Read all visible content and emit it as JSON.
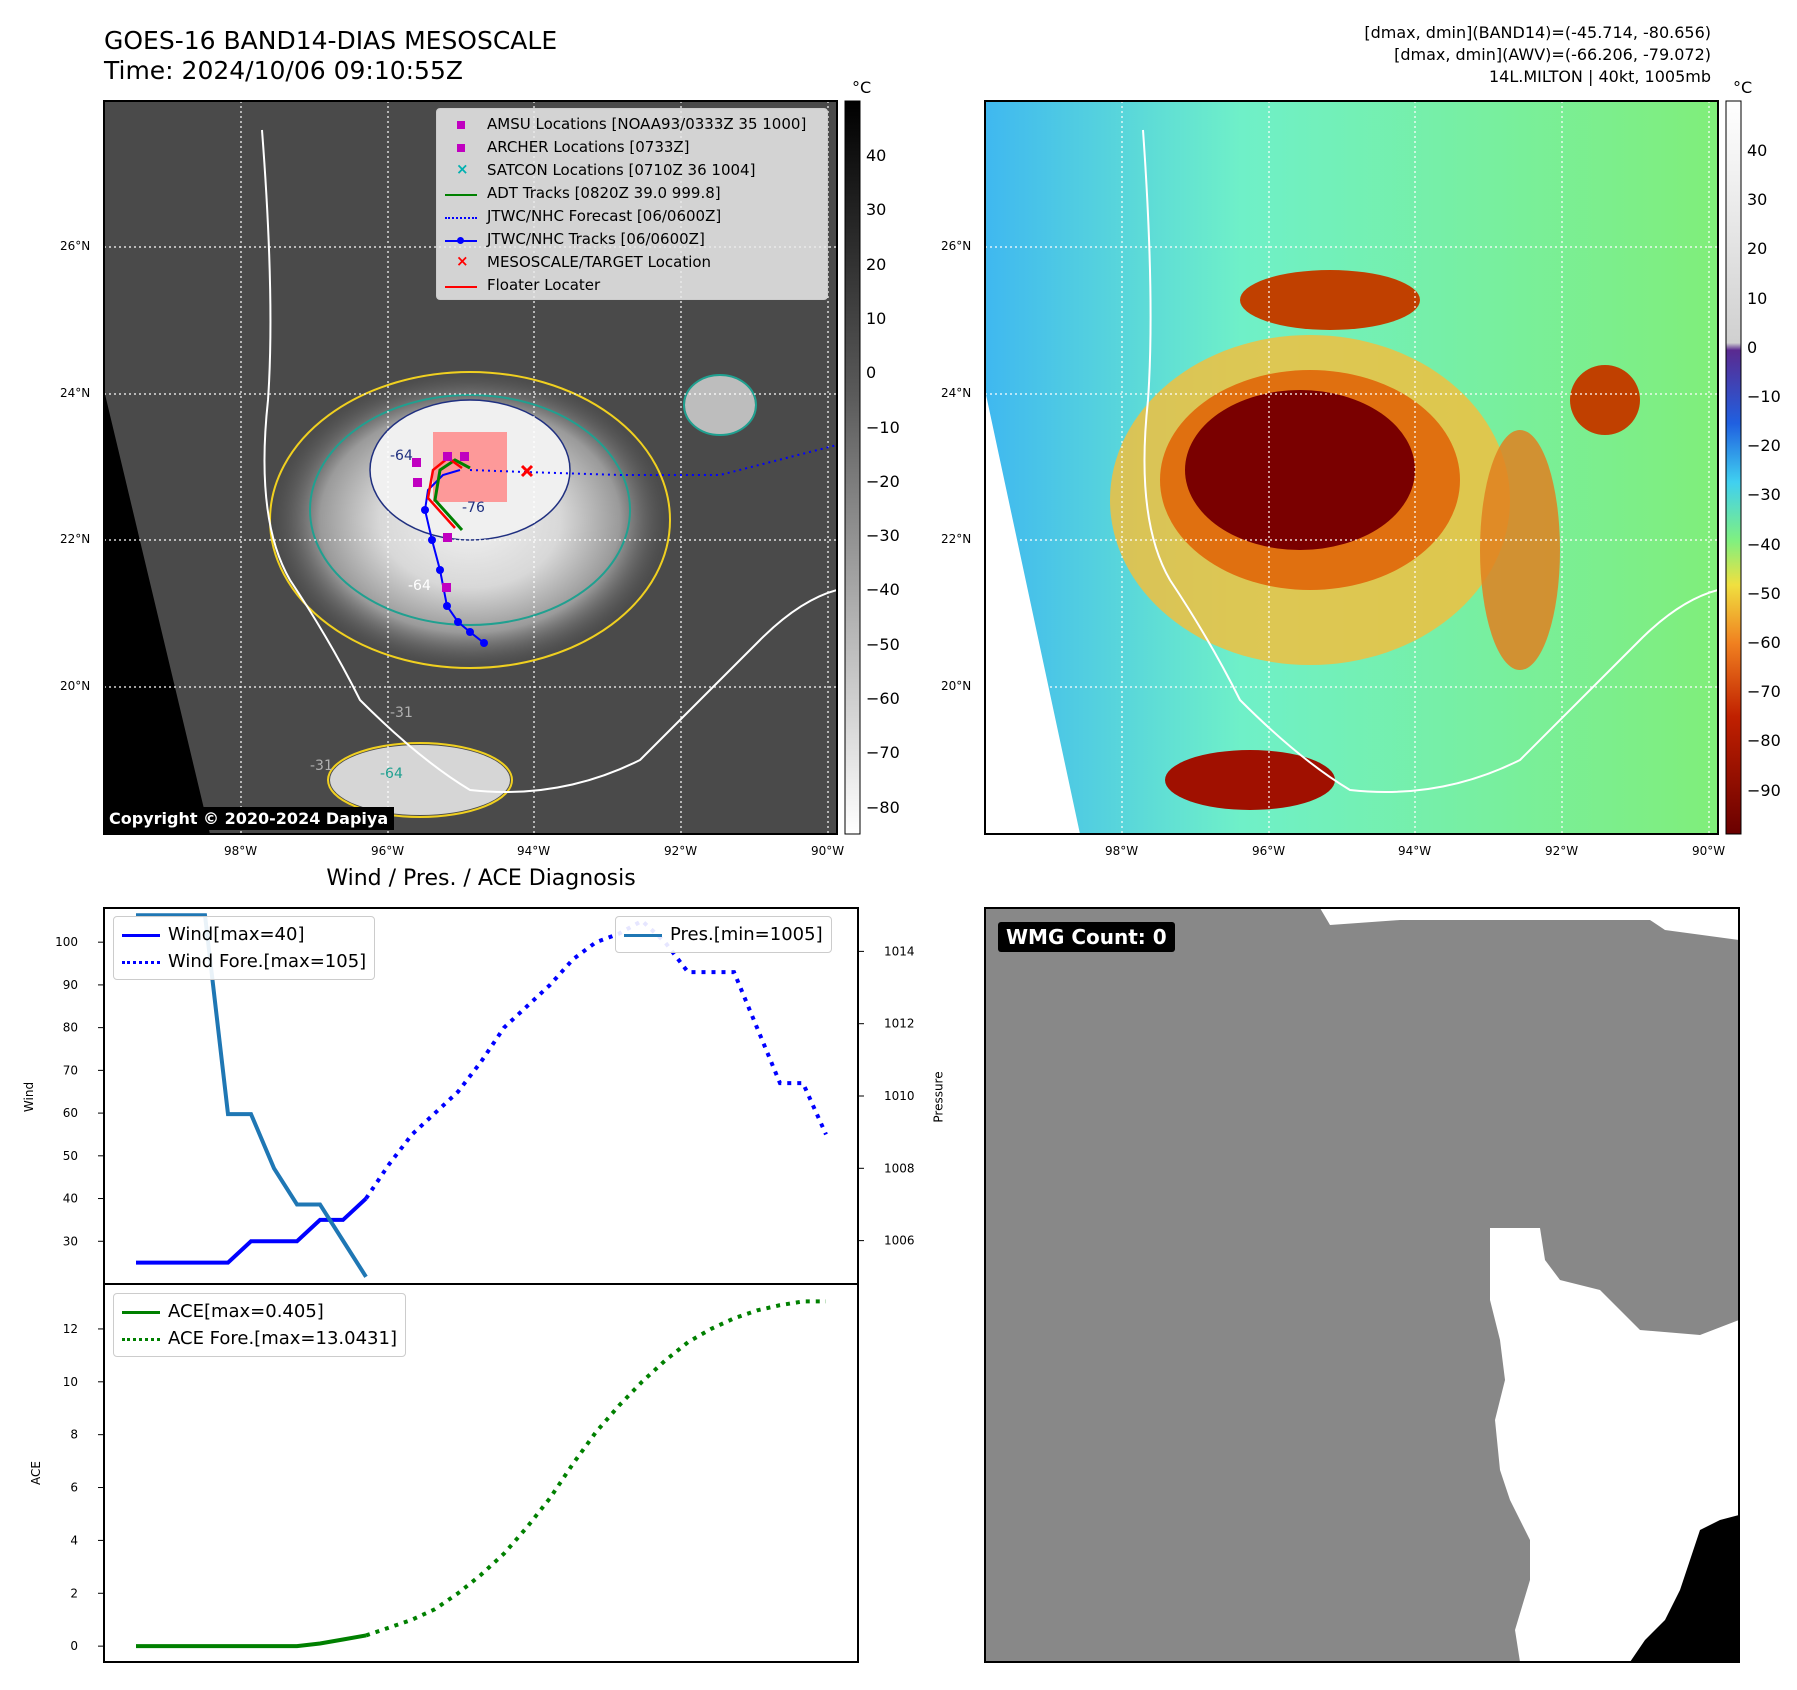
{
  "header": {
    "title_line1": "GOES-16 BAND14-DIAS MESOSCALE",
    "title_line2": "Time: 2024/10/06 09:10:55Z",
    "info_line1": "[dmax, dmin](BAND14)=(-45.714, -80.656)",
    "info_line2": "[dmax, dmin](AWV)=(-66.206, -79.072)",
    "info_line3": "14L.MILTON | 40kt, 1005mb"
  },
  "colors": {
    "amsu": "#c000c0",
    "archer": "#c000c0",
    "satcon": "#00b0b0",
    "adt": "#008000",
    "jtwc": "#0000ff",
    "target": "#ff0000",
    "floater": "#ff0000",
    "pres_line": "#1f77b4",
    "ace_line": "#008000"
  },
  "map_left": {
    "lat_labels": [
      "26°N",
      "24°N",
      "22°N",
      "20°N"
    ],
    "lon_labels": [
      "98°W",
      "96°W",
      "94°W",
      "92°W",
      "90°W"
    ],
    "colorbar_unit": "°C",
    "colorbar_ticks": [
      "40",
      "30",
      "20",
      "10",
      "0",
      "−10",
      "−20",
      "−30",
      "−40",
      "−50",
      "−60",
      "−70",
      "−80"
    ],
    "copyright": "Copyright © 2020-2024 Dapiya",
    "contour_labels": [
      "-64",
      "-76",
      "-64",
      "-31",
      "-64",
      "-31"
    ],
    "legend": [
      {
        "label": "AMSU Locations [NOAA93/0333Z 35 1000]",
        "marker": "square",
        "color": "#c000c0"
      },
      {
        "label": "ARCHER Locations [0733Z]",
        "marker": "square",
        "color": "#c000c0"
      },
      {
        "label": "SATCON Locations [0710Z 36 1004]",
        "marker": "x",
        "color": "#00b0b0"
      },
      {
        "label": "ADT Tracks [0820Z 39.0 999.8]",
        "marker": "line",
        "color": "#008000"
      },
      {
        "label": "JTWC/NHC Forecast [06/0600Z]",
        "marker": "dotted",
        "color": "#0000ff"
      },
      {
        "label": "JTWC/NHC Tracks [06/0600Z]",
        "marker": "line-dot",
        "color": "#0000ff"
      },
      {
        "label": "MESOSCALE/TARGET Location",
        "marker": "x",
        "color": "#ff0000"
      },
      {
        "label": "Floater Locater",
        "marker": "line",
        "color": "#ff0000"
      }
    ]
  },
  "map_right": {
    "lat_labels": [
      "26°N",
      "24°N",
      "22°N",
      "20°N"
    ],
    "lon_labels": [
      "98°W",
      "96°W",
      "94°W",
      "92°W",
      "90°W"
    ],
    "colorbar_unit": "°C",
    "colorbar_ticks": [
      "40",
      "30",
      "20",
      "10",
      "0",
      "−10",
      "−20",
      "−30",
      "−40",
      "−50",
      "−60",
      "−70",
      "−80",
      "−90"
    ]
  },
  "chart_data": [
    {
      "type": "line",
      "title": "Wind / Pres. / ACE Diagnosis",
      "ylabel": "Wind",
      "ylabel2": "Pressure",
      "ylim": [
        20,
        108
      ],
      "ylim2": [
        1004.8,
        1015.2
      ],
      "yticks": [
        30,
        40,
        50,
        60,
        70,
        80,
        90,
        100
      ],
      "yticks2": [
        1006,
        1008,
        1010,
        1012,
        1014
      ],
      "series": [
        {
          "name": "Wind[max=40]",
          "axis": "left",
          "style": "solid",
          "color": "#0000ff",
          "x": [
            0,
            1,
            2,
            3,
            4,
            5,
            6,
            7,
            8,
            9,
            10
          ],
          "y": [
            25,
            25,
            25,
            25,
            25,
            30,
            30,
            30,
            35,
            35,
            40
          ]
        },
        {
          "name": "Wind Fore.[max=105]",
          "axis": "left",
          "style": "dotted",
          "color": "#0000ff",
          "x": [
            10,
            11,
            12,
            13,
            14,
            15,
            16,
            17,
            18,
            19,
            20,
            21,
            22,
            23,
            24,
            25,
            26,
            27,
            28,
            29,
            30
          ],
          "y": [
            40,
            48,
            55,
            60,
            65,
            72,
            80,
            85,
            90,
            96,
            100,
            102,
            105,
            100,
            93,
            93,
            93,
            80,
            67,
            67,
            55
          ]
        },
        {
          "name": "Pres.[min=1005]",
          "axis": "right",
          "style": "solid",
          "color": "#1f77b4",
          "x": [
            0,
            1,
            2,
            3,
            4,
            5,
            6,
            7,
            8,
            9,
            10
          ],
          "y": [
            1015,
            1015,
            1015,
            1015,
            1009.5,
            1009.5,
            1008,
            1007,
            1007,
            1006,
            1005
          ]
        }
      ],
      "legend_left": [
        "Wind[max=40]",
        "Wind Fore.[max=105]"
      ],
      "legend_right": [
        "Pres.[min=1005]"
      ]
    },
    {
      "type": "line",
      "ylabel": "ACE",
      "ylim": [
        -0.6,
        13.7
      ],
      "yticks": [
        0,
        2,
        4,
        6,
        8,
        10,
        12
      ],
      "series": [
        {
          "name": "ACE[max=0.405]",
          "style": "solid",
          "color": "#008000",
          "x": [
            0,
            1,
            2,
            3,
            4,
            5,
            6,
            7,
            8,
            9,
            10
          ],
          "y": [
            0,
            0,
            0,
            0,
            0,
            0,
            0,
            0,
            0.1,
            0.25,
            0.405
          ]
        },
        {
          "name": "ACE Fore.[max=13.0431]",
          "style": "dotted",
          "color": "#008000",
          "x": [
            10,
            11,
            12,
            13,
            14,
            15,
            16,
            17,
            18,
            19,
            20,
            21,
            22,
            23,
            24,
            25,
            26,
            27,
            28,
            29,
            30
          ],
          "y": [
            0.405,
            0.7,
            1.0,
            1.4,
            2.0,
            2.7,
            3.5,
            4.5,
            5.6,
            6.9,
            8.1,
            9.1,
            10.0,
            10.8,
            11.5,
            12.0,
            12.4,
            12.7,
            12.9,
            13.04,
            13.0431
          ]
        }
      ]
    }
  ],
  "wmg": {
    "badge": "WMG Count: 0"
  }
}
